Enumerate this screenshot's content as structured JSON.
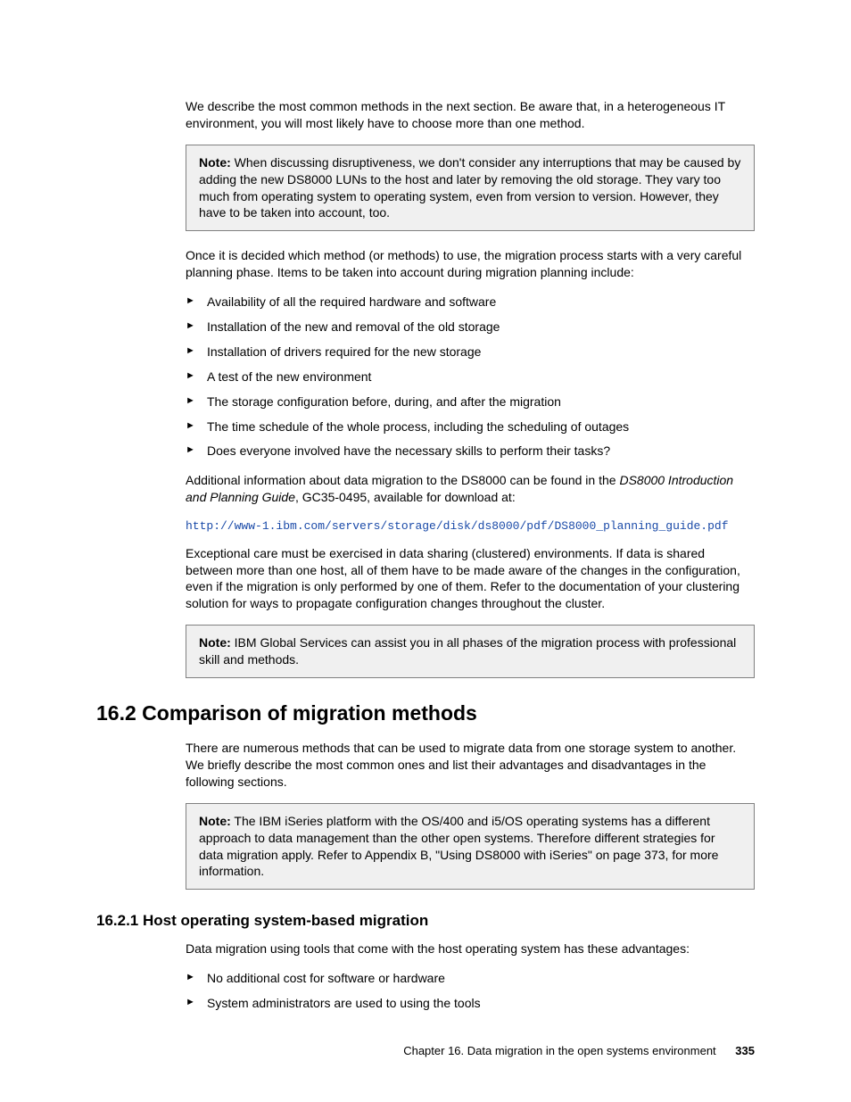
{
  "intro_para": "We describe the most common methods in the next section. Be aware that, in a heterogeneous IT environment, you will most likely have to choose more than one method.",
  "note1": {
    "label": "Note:",
    "text": " When discussing disruptiveness, we don't consider any interruptions that may be caused by adding the new DS8000 LUNs to the host and later by removing the old storage. They vary too much from operating system to operating system, even from version to version. However, they have to be taken into account, too."
  },
  "para2": "Once it is decided which method (or methods) to use, the migration process starts with a very careful planning phase. Items to be taken into account during migration planning include:",
  "bullets1": [
    "Availability of all the required hardware and software",
    "Installation of the new and removal of the old storage",
    "Installation of drivers required for the new storage",
    "A test of the new environment",
    "The storage configuration before, during, and after the migration",
    "The time schedule of the whole process, including the scheduling of outages",
    "Does everyone involved have the necessary skills to perform their tasks?"
  ],
  "para3_a": "Additional information about data migration to the DS8000 can be found in the ",
  "para3_italic": "DS8000 Introduction and Planning Guide",
  "para3_b": ", GC35-0495, available for download at:",
  "link_url": "http://www-1.ibm.com/servers/storage/disk/ds8000/pdf/DS8000_planning_guide.pdf",
  "para4": "Exceptional care must be exercised in data sharing (clustered) environments. If data is shared between more than one host, all of them have to be made aware of the changes in the configuration, even if the migration is only performed by one of them. Refer to the documentation of your clustering solution for ways to propagate configuration changes throughout the cluster.",
  "note2": {
    "label": "Note:",
    "text": " IBM Global Services can assist you in all phases of the migration process with professional skill and methods."
  },
  "section_heading": "16.2  Comparison of migration methods",
  "section_intro": "There are numerous methods that can be used to migrate data from one storage system to another. We briefly describe the most common ones and list their advantages and disadvantages in the following sections.",
  "note3": {
    "label": "Note:",
    "text": " The IBM iSeries platform with the OS/400 and i5/OS operating systems has a different approach to data management than the other open systems. Therefore different strategies for data migration apply. Refer to Appendix B, \"Using DS8000 with iSeries\" on page 373, for more information."
  },
  "subheading": "16.2.1  Host operating system-based migration",
  "sub_intro": "Data migration using tools that come with the host operating system has these advantages:",
  "bullets2": [
    "No additional cost for software or hardware",
    "System administrators are used to using the tools"
  ],
  "footer_chapter": "Chapter 16. Data migration in the open systems environment",
  "footer_page": "335"
}
